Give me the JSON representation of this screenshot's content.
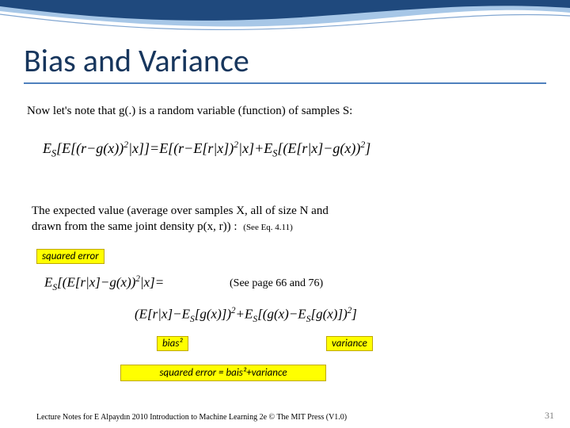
{
  "title": "Bias and Variance",
  "intro": "Now let's note that g(.) is a random variable (function) of samples S:",
  "eq1_html": "E<sub class='sub'>S</sub>[E[(r−g(x))<sup>2</sup>|x]]=E[(r−E[r|x])<sup>2</sup>|x]+E<sub class='sub'>S</sub>[(E[r|x]−g(x))<sup>2</sup>]",
  "para2_line1": "The expected value (average over samples X, all of size N and",
  "para2_line2_prefix": "drawn from the same joint density p(x, r)) :",
  "see_eq": "(See Eq. 4.11)",
  "squared_error_label": "squared error",
  "eq2_left_html": "E<sub class='sub'>S</sub>[(E[r|x]−g(x))<sup>2</sup>|x]=",
  "see_page": "(See page 66 and 76)",
  "eq3_html": "(E[r|x]−E<sub class='sub'>S</sub>[g(x)])<sup>2</sup>+E<sub class='sub'>S</sub>[(g(x)−E<sub class='sub'>S</sub>[g(x)])<sup>2</sup>]",
  "bias_label": "bias²",
  "variance_label": "variance",
  "summary": "squared error = bais²+variance",
  "footer": "Lecture Notes for E Alpaydın 2010 Introduction to Machine Learning 2e © The MIT Press (V1.0)",
  "page": "31",
  "colors": {
    "title": "#17365d",
    "underline": "#4f81bd",
    "callout_bg": "#ffff00",
    "wave_dark": "#1f497d",
    "wave_light": "#a7c7e7"
  }
}
